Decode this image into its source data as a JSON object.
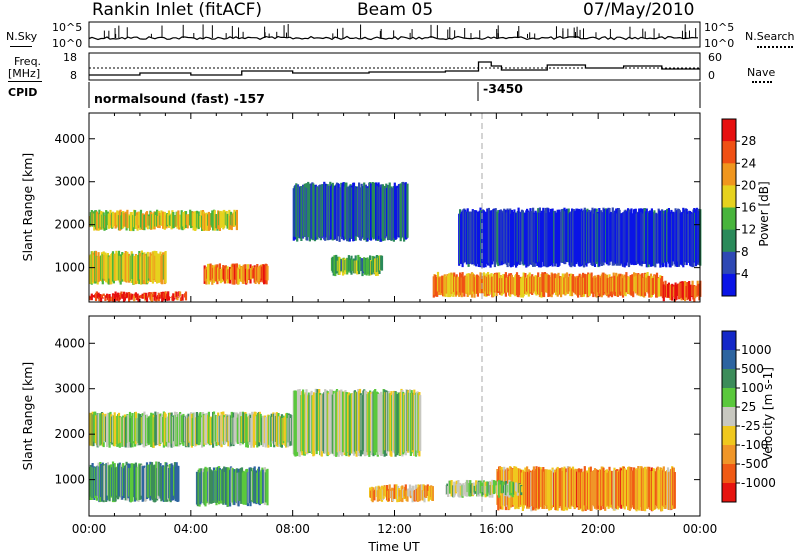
{
  "header": {
    "station": "Rankin Inlet (fitACF)",
    "beam": "Beam 05",
    "date": "07/May/2010"
  },
  "side_labels": {
    "nsky": "N.Sky",
    "nsearch": "N.Search",
    "freq_line1": "Freq.",
    "freq_line2": "[MHz]",
    "nave": "Nave",
    "cpid": "CPID"
  },
  "cpid": {
    "mode": "normalsound (fast) -157",
    "secondary": "-3450"
  },
  "noise_panel": {
    "left_ticks": [
      "10^5",
      "10^0"
    ],
    "right_ticks": [
      "10^5",
      "10^0"
    ]
  },
  "freq_panel": {
    "left_ticks": [
      "18",
      "8"
    ],
    "right_ticks": [
      "60",
      "0"
    ]
  },
  "chart_data": [
    {
      "type": "heatmap",
      "name": "power-panel",
      "ylabel": "Slant Range [km]",
      "xlabel": "Time UT",
      "x_tick_labels": [
        "00:00",
        "04:00",
        "08:00",
        "12:00",
        "16:00",
        "20:00",
        "00:00"
      ],
      "x_range_hours": [
        0,
        24
      ],
      "ylim": [
        200,
        4600
      ],
      "y_ticks": [
        1000,
        2000,
        3000,
        4000
      ],
      "colorbar": {
        "label": "Power [dB]",
        "ticks": [
          "4",
          "8",
          "12",
          "16",
          "20",
          "24",
          "28"
        ],
        "colors": [
          "#0a14e6",
          "#2e48b4",
          "#2a8a5a",
          "#48b43c",
          "#e6d21e",
          "#f0961e",
          "#f05014",
          "#e60f0f"
        ]
      },
      "regions": [
        {
          "t0": 0.0,
          "t1": 5.8,
          "r0": 1850,
          "r1": 2350,
          "level": 0.55
        },
        {
          "t0": 0.0,
          "t1": 3.0,
          "r0": 600,
          "r1": 1400,
          "level": 0.55
        },
        {
          "t0": 4.5,
          "t1": 7.0,
          "r0": 600,
          "r1": 1100,
          "level": 0.75
        },
        {
          "t0": 8.0,
          "t1": 12.5,
          "r0": 1600,
          "r1": 3000,
          "level": 0.2
        },
        {
          "t0": 9.5,
          "t1": 11.5,
          "r0": 800,
          "r1": 1300,
          "level": 0.4
        },
        {
          "t0": 13.5,
          "t1": 22.5,
          "r0": 300,
          "r1": 900,
          "level": 0.7
        },
        {
          "t0": 14.5,
          "t1": 24.0,
          "r0": 1000,
          "r1": 2400,
          "level": 0.1
        },
        {
          "t0": 0.0,
          "t1": 3.8,
          "r0": 200,
          "r1": 450,
          "level": 0.9
        },
        {
          "t0": 22.5,
          "t1": 24.0,
          "r0": 200,
          "r1": 700,
          "level": 0.85
        }
      ]
    },
    {
      "type": "heatmap",
      "name": "velocity-panel",
      "ylabel": "Slant Range [km]",
      "xlabel": "Time UT",
      "x_tick_labels": [
        "00:00",
        "04:00",
        "08:00",
        "12:00",
        "16:00",
        "20:00",
        "00:00"
      ],
      "x_range_hours": [
        0,
        24
      ],
      "ylim": [
        200,
        4600
      ],
      "y_ticks": [
        1000,
        2000,
        3000,
        4000
      ],
      "colorbar": {
        "label": "Velocity [m s-1]",
        "ticks": [
          "1000",
          "500",
          "100",
          "25",
          "-25",
          "-100",
          "-500",
          "-1000"
        ],
        "colors": [
          "#1428c8",
          "#2d64a0",
          "#3c8c5a",
          "#5ac83c",
          "#c8c8c0",
          "#f0c81e",
          "#f09628",
          "#f05a14",
          "#e6140f"
        ]
      },
      "regions": [
        {
          "t0": 0.0,
          "t1": 8.0,
          "r0": 1700,
          "r1": 2500,
          "level": 0.45
        },
        {
          "t0": 8.0,
          "t1": 13.0,
          "r0": 1500,
          "r1": 3000,
          "level": 0.45
        },
        {
          "t0": 0.0,
          "t1": 3.5,
          "r0": 500,
          "r1": 1400,
          "level": 0.3
        },
        {
          "t0": 4.2,
          "t1": 7.0,
          "r0": 400,
          "r1": 1300,
          "level": 0.3
        },
        {
          "t0": 11.0,
          "t1": 13.5,
          "r0": 500,
          "r1": 900,
          "level": 0.65
        },
        {
          "t0": 16.0,
          "t1": 23.0,
          "r0": 300,
          "r1": 1300,
          "level": 0.72
        },
        {
          "t0": 14.0,
          "t1": 17.0,
          "r0": 600,
          "r1": 1000,
          "level": 0.45
        }
      ]
    }
  ]
}
